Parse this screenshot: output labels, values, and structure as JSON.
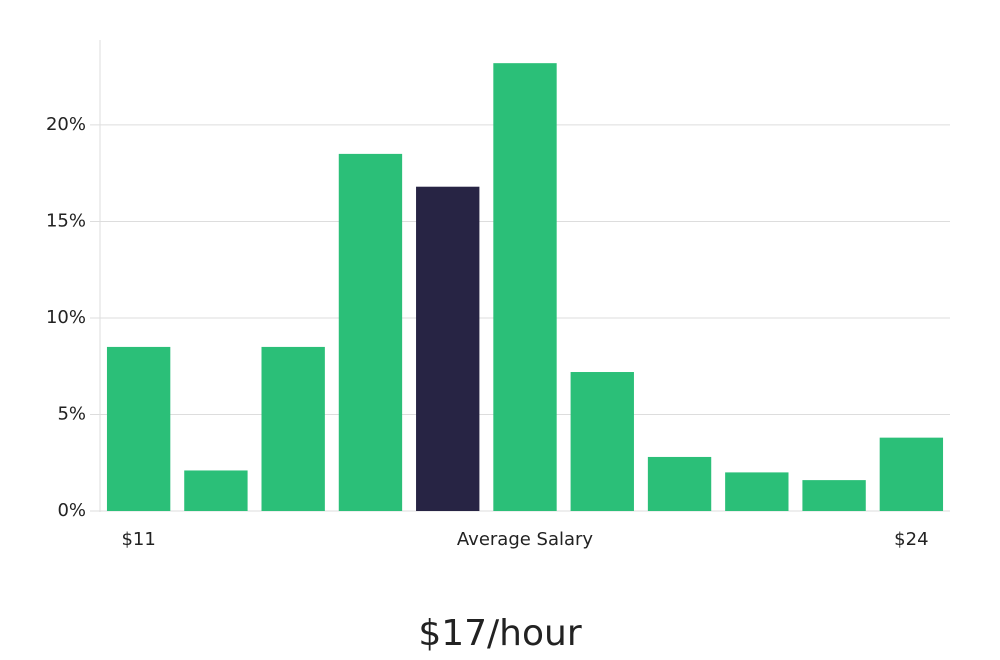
{
  "chart_data": {
    "type": "bar",
    "categories": [
      "$11",
      null,
      null,
      null,
      null,
      "Average Salary",
      null,
      null,
      null,
      null,
      "$24"
    ],
    "values": [
      8.5,
      2.1,
      8.5,
      18.5,
      16.8,
      23.2,
      7.2,
      2.8,
      2.0,
      1.6,
      3.8
    ],
    "colors": [
      "#2bbf78",
      "#2bbf78",
      "#2bbf78",
      "#2bbf78",
      "#272444",
      "#2bbf78",
      "#2bbf78",
      "#2bbf78",
      "#2bbf78",
      "#2bbf78",
      "#2bbf78"
    ],
    "ylim": [
      0,
      24.4
    ],
    "yticks": [
      {
        "value": 0,
        "label": "0%"
      },
      {
        "value": 5,
        "label": "5%"
      },
      {
        "value": 10,
        "label": "10%"
      },
      {
        "value": 15,
        "label": "15%"
      },
      {
        "value": 20,
        "label": "20%"
      }
    ],
    "grid": true,
    "annotation": "$17/hour"
  }
}
